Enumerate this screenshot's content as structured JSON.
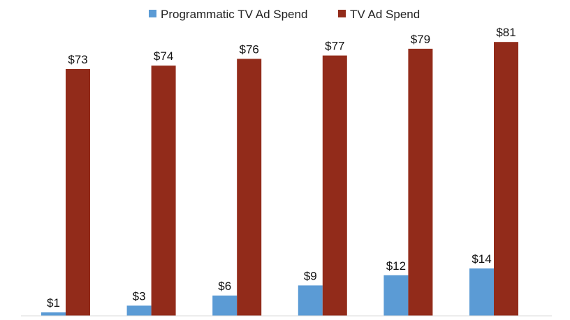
{
  "chart_data": {
    "type": "bar",
    "categories": [
      "",
      "",
      "",
      "",
      "",
      ""
    ],
    "series": [
      {
        "name": "Programmatic TV Ad Spend",
        "color": "#5b9bd5",
        "values": [
          1,
          3,
          6,
          9,
          12,
          14
        ],
        "labels": [
          "$1",
          "$3",
          "$6",
          "$9",
          "$12",
          "$14"
        ]
      },
      {
        "name": "TV Ad Spend",
        "color": "#922b1a",
        "values": [
          73,
          74,
          76,
          77,
          79,
          81
        ],
        "labels": [
          "$73",
          "$74",
          "$76",
          "$77",
          "$79",
          "$81"
        ]
      }
    ],
    "ylim": [
      0,
      90
    ],
    "grid": false,
    "legend": "top-center"
  }
}
